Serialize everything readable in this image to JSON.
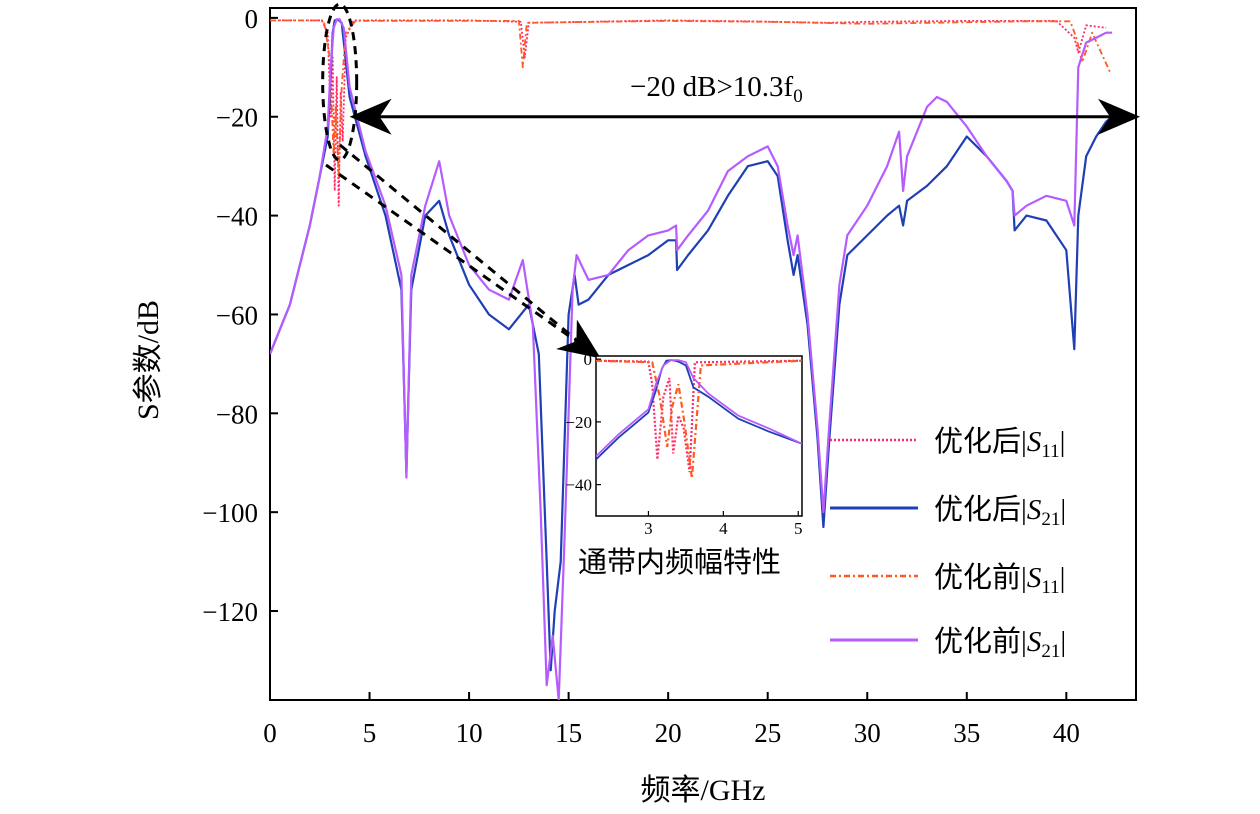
{
  "chart_data": {
    "type": "line",
    "xlabel": "频率/GHz",
    "ylabel": "S参数/dB",
    "xlim": [
      0,
      43.5
    ],
    "ylim": [
      -138,
      2
    ],
    "x_ticks": [
      "0",
      "5",
      "10",
      "15",
      "20",
      "25",
      "30",
      "35",
      "40"
    ],
    "y_ticks": [
      "0",
      "−20",
      "−40",
      "−60",
      "−80",
      "−100",
      "−120"
    ],
    "x_tick_values": [
      0,
      5,
      10,
      15,
      20,
      25,
      30,
      35,
      40
    ],
    "y_tick_values": [
      0,
      -20,
      -40,
      -60,
      -80,
      -100,
      -120
    ],
    "legend": {
      "placement": "right",
      "entries": [
        {
          "label": "优化后|S11|",
          "color": "#ff2a66",
          "style": "dotted"
        },
        {
          "label": "优化后|S21|",
          "color": "#1f3fb5",
          "style": "solid"
        },
        {
          "label": "优化前|S11|",
          "color": "#ff5a1f",
          "style": "dashdot"
        },
        {
          "label": "优化前|S21|",
          "color": "#b65cff",
          "style": "solid"
        }
      ]
    },
    "annotations": {
      "bandwidth_text": "−20 dB>10.3f0",
      "bandwidth_arrow_y": -20,
      "bandwidth_arrow_x": [
        4.3,
        43.5
      ],
      "zoom_ellipse_center": [
        3.5,
        -13
      ],
      "inset_caption": "通带内频幅特性"
    },
    "series": [
      {
        "name": "优化后|S11|",
        "color": "#ff2a66",
        "x": [
          0,
          2.6,
          2.9,
          3.05,
          3.15,
          3.25,
          3.35,
          3.45,
          3.55,
          3.65,
          3.8,
          4.2,
          10,
          12.6,
          12.8,
          13.0,
          20,
          24,
          28,
          30,
          35,
          39.5,
          40.4,
          40.6,
          41.0,
          42.0
        ],
        "y": [
          -0.5,
          -0.5,
          -3,
          -20,
          -8,
          -35,
          -12,
          -38,
          -15,
          -25,
          -4,
          -0.5,
          -0.5,
          -0.8,
          -8,
          -1,
          -0.5,
          -0.7,
          -1,
          -0.8,
          -0.6,
          -0.6,
          -4,
          -7,
          -1.5,
          -2
        ]
      },
      {
        "name": "优化后|S21|",
        "color": "#1f3fb5",
        "x": [
          0,
          1,
          2,
          2.5,
          2.9,
          3.05,
          3.15,
          3.25,
          3.4,
          3.6,
          4.0,
          4.8,
          5.8,
          6.6,
          6.85,
          7.1,
          7.8,
          8.5,
          9.0,
          10,
          11,
          12,
          13,
          13.5,
          13.9,
          14.1,
          14.3,
          14.6,
          15.0,
          15.3,
          15.5,
          16,
          17,
          18,
          19,
          20,
          20.4,
          20.45,
          21,
          22,
          23,
          24,
          25,
          25.5,
          26,
          26.3,
          26.5,
          27,
          27.5,
          27.8,
          28.1,
          28.6,
          29,
          30,
          31,
          31.6,
          31.8,
          32,
          33,
          34,
          35,
          36,
          37,
          37.3,
          37.4,
          38,
          39,
          40,
          40.4,
          40.6,
          41,
          41.5,
          42,
          42.3
        ],
        "y": [
          -68,
          -58,
          -42,
          -32,
          -24,
          -12,
          -3,
          -0.5,
          -0.3,
          -1,
          -16,
          -28,
          -40,
          -55,
          -92,
          -55,
          -40,
          -37,
          -44,
          -54,
          -60,
          -63,
          -58,
          -68,
          -110,
          -132,
          -120,
          -110,
          -60,
          -52,
          -58,
          -57,
          -52,
          -50,
          -48,
          -45,
          -45,
          -51,
          -48,
          -43,
          -36,
          -30,
          -29,
          -32,
          -45,
          -52,
          -48,
          -62,
          -85,
          -103,
          -85,
          -58,
          -48,
          -44,
          -40,
          -38,
          -42,
          -37,
          -34,
          -30,
          -24,
          -28,
          -33,
          -35,
          -43,
          -40,
          -41,
          -47,
          -67,
          -40,
          -28,
          -24,
          -21,
          -20
        ]
      },
      {
        "name": "优化前|S11|",
        "color": "#ff5a1f",
        "x": [
          0,
          2.7,
          3.0,
          3.2,
          3.3,
          3.45,
          3.6,
          3.8,
          4.3,
          12.5,
          12.7,
          12.9,
          20,
          25,
          30,
          38,
          40.2,
          40.5,
          40.8,
          41.3,
          42.2
        ],
        "y": [
          -0.5,
          -0.5,
          -8,
          -28,
          -18,
          -32,
          -14,
          -3,
          -0.6,
          -0.6,
          -10,
          -1,
          -0.6,
          -0.8,
          -1.2,
          -0.7,
          -0.7,
          -4,
          -9,
          -3,
          -11
        ]
      },
      {
        "name": "优化前|S21|",
        "color": "#b65cff",
        "x": [
          0,
          1,
          2,
          2.5,
          2.9,
          3.05,
          3.2,
          3.35,
          3.5,
          3.7,
          4.0,
          4.8,
          5.8,
          6.6,
          6.85,
          7.1,
          7.8,
          8.5,
          9.0,
          10,
          11,
          12,
          12.7,
          13.2,
          13.6,
          13.9,
          14.2,
          14.5,
          14.8,
          15.2,
          15.4,
          16,
          17,
          18,
          19,
          20,
          20.4,
          20.45,
          21,
          22,
          23,
          24,
          25,
          25.5,
          26,
          26.3,
          26.5,
          27,
          27.5,
          27.8,
          28.1,
          28.6,
          29,
          30,
          31,
          31.6,
          31.8,
          32,
          33,
          33.5,
          34,
          35,
          36,
          37,
          37.3,
          37.4,
          38,
          39,
          40,
          40.4,
          40.6,
          41,
          41.5,
          42,
          42.3
        ],
        "y": [
          -68,
          -58,
          -42,
          -32,
          -22,
          -10,
          -2,
          -0.3,
          -0.3,
          -2,
          -14,
          -27,
          -38,
          -52,
          -93,
          -52,
          -38,
          -29,
          -40,
          -50,
          -55,
          -57,
          -49,
          -62,
          -100,
          -135,
          -125,
          -138,
          -105,
          -55,
          -48,
          -53,
          -52,
          -47,
          -44,
          -43,
          -42,
          -47,
          -44,
          -39,
          -31,
          -28,
          -26,
          -30,
          -42,
          -48,
          -44,
          -60,
          -83,
          -100,
          -82,
          -54,
          -44,
          -38,
          -30,
          -23,
          -35,
          -28,
          -18,
          -16,
          -17,
          -22,
          -28,
          -33,
          -35,
          -40,
          -38,
          -36,
          -37,
          -42,
          -10,
          -5,
          -4,
          -3,
          -3
        ]
      }
    ],
    "inset": {
      "xlim": [
        2.3,
        5.05
      ],
      "ylim": [
        -50,
        1
      ],
      "x_ticks": [
        "3",
        "4",
        "5"
      ],
      "y_ticks": [
        "0",
        "−20",
        "−40"
      ],
      "x_tick_values": [
        3,
        4,
        5
      ],
      "y_tick_values": [
        0,
        -20,
        -40
      ],
      "series": [
        {
          "name": "优化后|S11|",
          "color": "#ff2a66",
          "x": [
            2.3,
            3.0,
            3.05,
            3.12,
            3.2,
            3.28,
            3.33,
            3.4,
            3.47,
            3.55,
            3.62,
            5.05
          ],
          "y": [
            -0.5,
            -0.8,
            -8,
            -32,
            -12,
            -6,
            -30,
            -18,
            -22,
            -36,
            -1,
            -0.5
          ]
        },
        {
          "name": "优化后|S21|",
          "color": "#1f3fb5",
          "x": [
            2.3,
            2.6,
            2.85,
            3.0,
            3.1,
            3.18,
            3.24,
            3.3,
            3.36,
            3.42,
            3.5,
            3.6,
            3.8,
            4.2,
            4.6,
            5.05
          ],
          "y": [
            -32,
            -25,
            -20,
            -17,
            -10,
            -3,
            -0.5,
            -0.3,
            -0.5,
            -1,
            -2,
            -9,
            -12,
            -19,
            -23,
            -27
          ]
        },
        {
          "name": "优化前|S11|",
          "color": "#ff5a1f",
          "x": [
            2.3,
            3.05,
            3.15,
            3.25,
            3.32,
            3.4,
            3.48,
            3.58,
            3.7,
            5.05
          ],
          "y": [
            -0.5,
            -1,
            -12,
            -28,
            -15,
            -8,
            -20,
            -38,
            -2,
            -0.5
          ]
        },
        {
          "name": "优化前|S21|",
          "color": "#b65cff",
          "x": [
            2.3,
            2.6,
            2.85,
            3.0,
            3.1,
            3.2,
            3.3,
            3.4,
            3.5,
            3.6,
            3.8,
            4.2,
            4.6,
            5.05
          ],
          "y": [
            -31,
            -24,
            -19,
            -16,
            -8,
            -2,
            -0.3,
            -0.3,
            -1,
            -6,
            -11,
            -18,
            -22,
            -27
          ]
        }
      ]
    }
  }
}
